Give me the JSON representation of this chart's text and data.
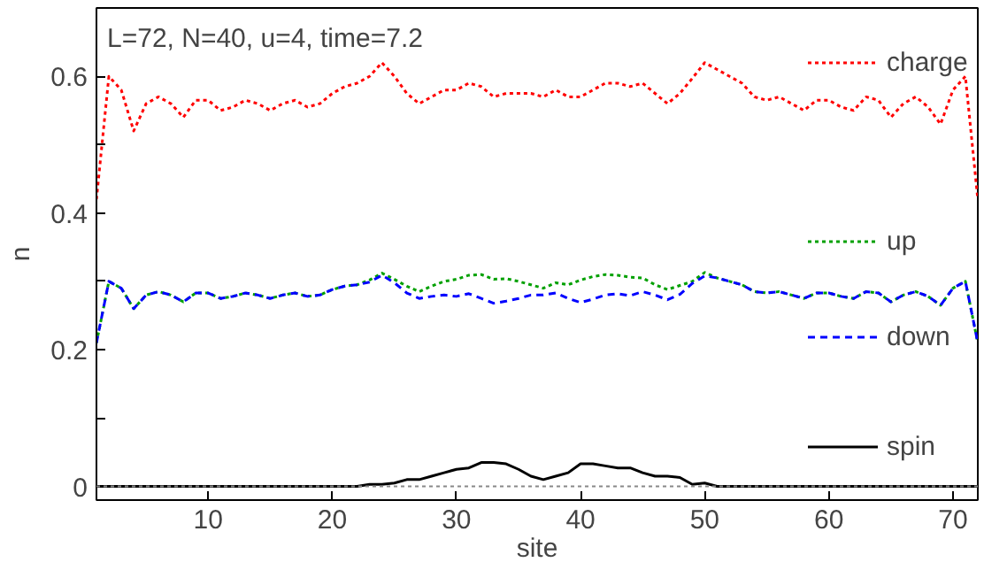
{
  "chart_data": {
    "type": "line",
    "xlabel": "site",
    "ylabel": "n",
    "annotations": [
      "L=72, N=40, u=4, time=7.2"
    ],
    "x": [
      1,
      2,
      3,
      4,
      5,
      6,
      7,
      8,
      9,
      10,
      11,
      12,
      13,
      14,
      15,
      16,
      17,
      18,
      19,
      20,
      21,
      22,
      23,
      24,
      25,
      26,
      27,
      28,
      29,
      30,
      31,
      32,
      33,
      34,
      35,
      36,
      37,
      38,
      39,
      40,
      41,
      42,
      43,
      44,
      45,
      46,
      47,
      48,
      49,
      50,
      51,
      52,
      53,
      54,
      55,
      56,
      57,
      58,
      59,
      60,
      61,
      62,
      63,
      64,
      65,
      66,
      67,
      68,
      69,
      70,
      71,
      72
    ],
    "xlim": [
      1,
      72
    ],
    "xticks": [
      10,
      20,
      30,
      40,
      50,
      60,
      70
    ],
    "ylim": [
      -0.02,
      0.7
    ],
    "yticks": [
      0,
      {
        "value": 0.1,
        "label": null
      },
      0.2,
      {
        "value": 0.3,
        "label": null
      },
      0.4,
      {
        "value": 0.5,
        "label": null
      },
      0.6
    ],
    "grid": false,
    "legend": "right",
    "ref_lines": [
      {
        "axis": "y",
        "value": 0,
        "label": null,
        "color": "#888888",
        "line_style": "dotted"
      }
    ],
    "series": [
      {
        "name": "charge",
        "color": "#ff0000",
        "line_style": "dotted",
        "values": [
          0.42,
          0.6,
          0.58,
          0.52,
          0.56,
          0.57,
          0.56,
          0.54,
          0.565,
          0.565,
          0.55,
          0.555,
          0.565,
          0.56,
          0.55,
          0.56,
          0.565,
          0.555,
          0.56,
          0.575,
          0.585,
          0.59,
          0.6,
          0.62,
          0.6,
          0.575,
          0.56,
          0.57,
          0.58,
          0.58,
          0.59,
          0.585,
          0.57,
          0.575,
          0.575,
          0.575,
          0.57,
          0.58,
          0.57,
          0.57,
          0.58,
          0.59,
          0.59,
          0.585,
          0.59,
          0.575,
          0.56,
          0.575,
          0.597,
          0.62,
          0.61,
          0.6,
          0.59,
          0.57,
          0.565,
          0.57,
          0.56,
          0.55,
          0.565,
          0.565,
          0.555,
          0.55,
          0.57,
          0.565,
          0.54,
          0.56,
          0.57,
          0.555,
          0.53,
          0.58,
          0.6,
          0.42
        ]
      },
      {
        "name": "up",
        "color": "#00a000",
        "line_style": "dotted",
        "values": [
          0.21,
          0.3,
          0.29,
          0.26,
          0.28,
          0.285,
          0.28,
          0.27,
          0.283,
          0.283,
          0.275,
          0.278,
          0.283,
          0.28,
          0.275,
          0.28,
          0.283,
          0.278,
          0.28,
          0.288,
          0.293,
          0.295,
          0.302,
          0.312,
          0.303,
          0.293,
          0.285,
          0.293,
          0.3,
          0.303,
          0.309,
          0.31,
          0.303,
          0.304,
          0.3,
          0.295,
          0.29,
          0.298,
          0.295,
          0.302,
          0.307,
          0.31,
          0.309,
          0.306,
          0.305,
          0.295,
          0.288,
          0.294,
          0.3,
          0.313,
          0.305,
          0.3,
          0.295,
          0.285,
          0.283,
          0.285,
          0.28,
          0.275,
          0.283,
          0.283,
          0.278,
          0.275,
          0.285,
          0.283,
          0.27,
          0.28,
          0.285,
          0.278,
          0.265,
          0.29,
          0.3,
          0.21
        ]
      },
      {
        "name": "down",
        "color": "#0000ff",
        "line_style": "dashed",
        "values": [
          0.21,
          0.3,
          0.29,
          0.26,
          0.28,
          0.285,
          0.28,
          0.27,
          0.283,
          0.283,
          0.275,
          0.278,
          0.283,
          0.28,
          0.275,
          0.28,
          0.283,
          0.278,
          0.28,
          0.288,
          0.293,
          0.295,
          0.299,
          0.309,
          0.298,
          0.283,
          0.275,
          0.278,
          0.28,
          0.278,
          0.282,
          0.275,
          0.268,
          0.271,
          0.275,
          0.28,
          0.28,
          0.283,
          0.275,
          0.269,
          0.274,
          0.28,
          0.282,
          0.279,
          0.285,
          0.28,
          0.273,
          0.281,
          0.297,
          0.308,
          0.305,
          0.3,
          0.295,
          0.285,
          0.283,
          0.285,
          0.28,
          0.275,
          0.283,
          0.283,
          0.278,
          0.275,
          0.285,
          0.283,
          0.27,
          0.28,
          0.285,
          0.278,
          0.265,
          0.29,
          0.3,
          0.21
        ]
      },
      {
        "name": "spin",
        "color": "#000000",
        "line_style": "solid",
        "values": [
          0,
          0,
          0,
          0,
          0,
          0,
          0,
          0,
          0,
          0,
          0,
          0,
          0,
          0,
          0,
          0,
          0,
          0,
          0,
          0,
          0,
          0,
          0.003,
          0.003,
          0.005,
          0.01,
          0.01,
          0.015,
          0.02,
          0.025,
          0.027,
          0.035,
          0.035,
          0.033,
          0.025,
          0.015,
          0.01,
          0.015,
          0.02,
          0.033,
          0.033,
          0.03,
          0.027,
          0.027,
          0.02,
          0.015,
          0.015,
          0.013,
          0.003,
          0.005,
          0,
          0,
          0,
          0,
          0,
          0,
          0,
          0,
          0,
          0,
          0,
          0,
          0,
          0,
          0,
          0,
          0,
          0,
          0,
          0,
          0,
          0
        ]
      }
    ]
  }
}
